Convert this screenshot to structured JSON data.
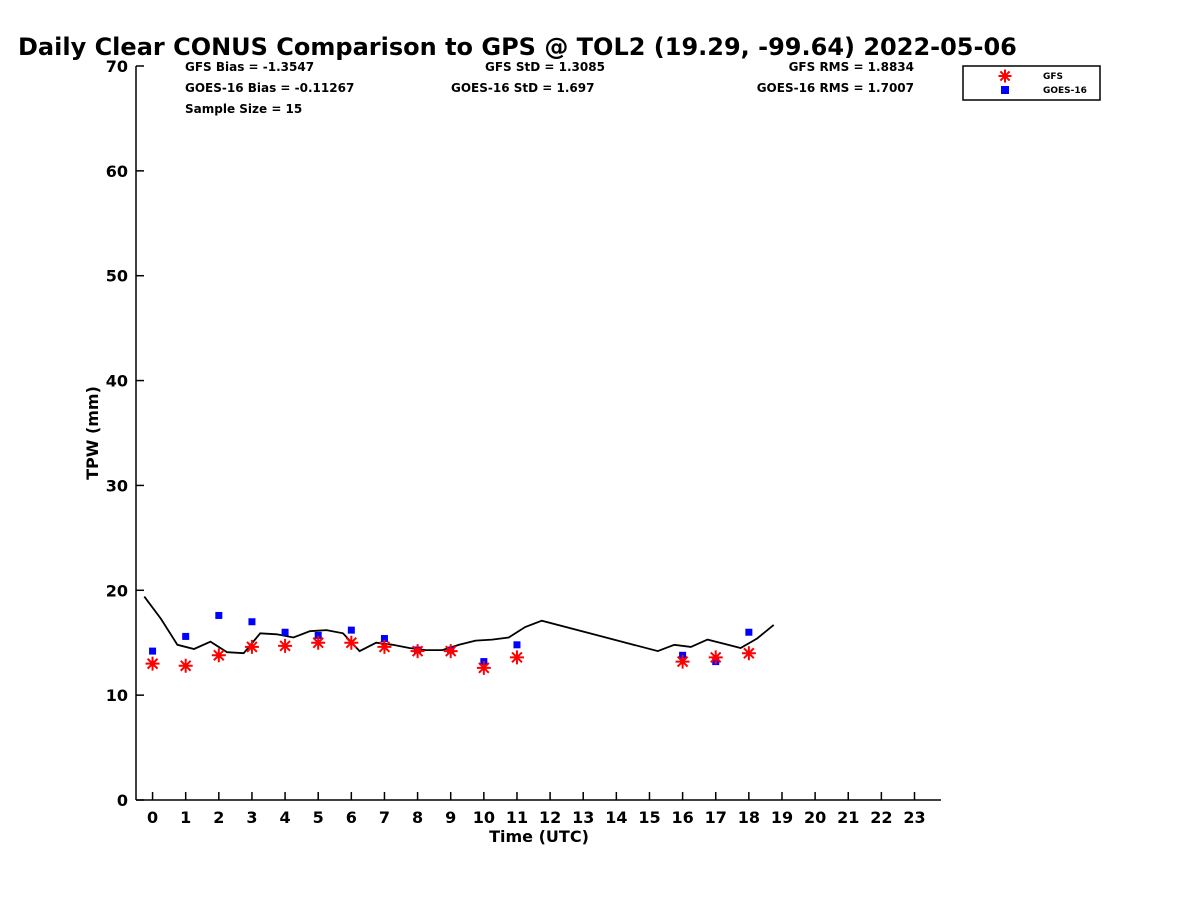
{
  "chart_data": {
    "type": "scatter",
    "title": "Daily Clear CONUS Comparison to GPS @ TOL2 (19.29, -99.64) 2022-05-06",
    "xlabel": "Time (UTC)",
    "ylabel": "TPW (mm)",
    "xlim": [
      -0.5,
      23.8
    ],
    "ylim": [
      0,
      70
    ],
    "xticks": [
      0,
      1,
      2,
      3,
      4,
      5,
      6,
      7,
      8,
      9,
      10,
      11,
      12,
      13,
      14,
      15,
      16,
      17,
      18,
      19,
      20,
      21,
      22,
      23
    ],
    "yticks": [
      0,
      10,
      20,
      30,
      40,
      50,
      60,
      70
    ],
    "grid": false,
    "legend_position": "top-right",
    "stats": {
      "gfs_bias": "GFS Bias = -1.3547",
      "goes_bias": "GOES-16 Bias = -0.11267",
      "sample_size": "Sample Size = 15",
      "gfs_std": "GFS StD = 1.3085",
      "goes_std": "GOES-16 StD = 1.697",
      "gfs_rms": "GFS RMS = 1.8834",
      "goes_rms": "GOES-16 RMS = 1.7007"
    },
    "series": [
      {
        "name": "GFS",
        "marker": "asterisk",
        "color": "#ff0000",
        "x": [
          0,
          1,
          2,
          3,
          4,
          5,
          6,
          7,
          8,
          9,
          10,
          11,
          16,
          17,
          18
        ],
        "y": [
          13.0,
          12.8,
          13.8,
          14.6,
          14.7,
          15.0,
          15.0,
          14.6,
          14.2,
          14.2,
          12.6,
          13.6,
          13.2,
          13.6,
          14.0
        ]
      },
      {
        "name": "GOES-16",
        "marker": "square",
        "color": "#0000ff",
        "x": [
          0,
          1,
          2,
          3,
          4,
          5,
          6,
          7,
          8,
          9,
          10,
          11,
          16,
          17,
          18
        ],
        "y": [
          14.2,
          15.6,
          17.6,
          17.0,
          16.0,
          15.7,
          16.2,
          15.4,
          14.3,
          14.3,
          13.2,
          14.8,
          13.8,
          13.2,
          16.0
        ]
      },
      {
        "marker": "line",
        "color": "#000000",
        "x": [
          -0.25,
          0.25,
          0.75,
          1.25,
          1.75,
          2.25,
          2.75,
          3.25,
          3.75,
          4.25,
          4.75,
          5.25,
          5.75,
          6.25,
          6.75,
          7.25,
          7.75,
          8.25,
          8.75,
          9.25,
          9.75,
          10.25,
          10.75,
          11.25,
          11.75,
          15.25,
          15.75,
          16.25,
          16.75,
          17.25,
          17.75,
          18.25,
          18.75
        ],
        "y": [
          19.4,
          17.3,
          14.8,
          14.4,
          15.1,
          14.1,
          14.0,
          15.9,
          15.8,
          15.5,
          16.1,
          16.2,
          15.9,
          14.2,
          15.0,
          14.8,
          14.5,
          14.3,
          14.3,
          14.8,
          15.2,
          15.3,
          15.5,
          16.5,
          17.1,
          14.2,
          14.8,
          14.6,
          15.3,
          14.9,
          14.5,
          15.4,
          16.7
        ]
      }
    ]
  }
}
